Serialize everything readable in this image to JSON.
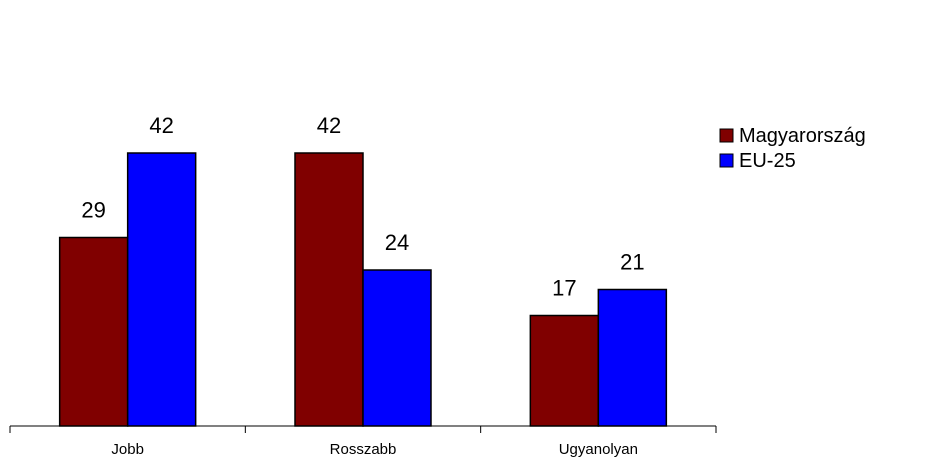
{
  "chart_data": {
    "type": "bar",
    "title": "",
    "xlabel": "",
    "ylabel": "",
    "categories": [
      "Jobb",
      "Rosszabb",
      "Ugyanolyan"
    ],
    "series": [
      {
        "name": "Magyarország",
        "values": [
          29,
          42,
          17
        ],
        "color": "#800000"
      },
      {
        "name": "EU-25",
        "values": [
          42,
          24,
          21
        ],
        "color": "#0000ff"
      }
    ],
    "ylim": [
      0,
      46
    ],
    "grid": false,
    "legend_position": "right",
    "data_labels": true
  }
}
